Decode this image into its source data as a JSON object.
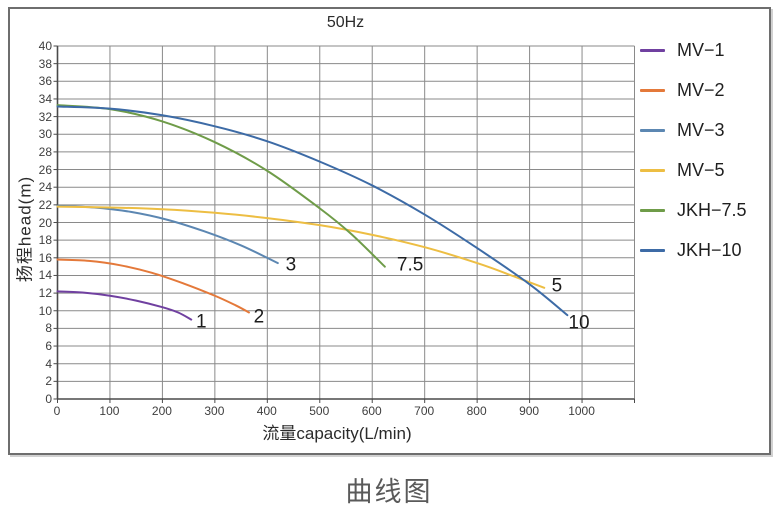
{
  "page": {
    "caption": "曲线图"
  },
  "chart_data": {
    "type": "line",
    "title": "50Hz",
    "xlabel": "流量capacity(L/min)",
    "ylabel": "扬程head(m)",
    "xlim": [
      0,
      1100
    ],
    "ylim": [
      0,
      40
    ],
    "x_tick_step": 100,
    "x_tick_label_max": 1000,
    "y_tick_step": 2,
    "grid": true,
    "legend_position": "right",
    "grid_color": "#8a8a8a",
    "axis_color": "#4a4a4a",
    "series": [
      {
        "name": "MV−1",
        "color": "#7040A0",
        "points": [
          [
            0,
            12.2
          ],
          [
            50,
            12.05
          ],
          [
            100,
            11.7
          ],
          [
            150,
            11.15
          ],
          [
            200,
            10.4
          ],
          [
            230,
            9.8
          ],
          [
            255,
            9.0
          ]
        ]
      },
      {
        "name": "MV−2",
        "color": "#E4793A",
        "points": [
          [
            0,
            15.8
          ],
          [
            60,
            15.65
          ],
          [
            120,
            15.15
          ],
          [
            180,
            14.3
          ],
          [
            240,
            13.1
          ],
          [
            300,
            11.7
          ],
          [
            340,
            10.6
          ],
          [
            365,
            9.8
          ]
        ]
      },
      {
        "name": "MV−3",
        "color": "#5C87B2",
        "points": [
          [
            0,
            21.9
          ],
          [
            70,
            21.7
          ],
          [
            140,
            21.2
          ],
          [
            210,
            20.3
          ],
          [
            280,
            19.0
          ],
          [
            350,
            17.4
          ],
          [
            420,
            15.4
          ]
        ]
      },
      {
        "name": "MV−5",
        "color": "#EDBE43",
        "points": [
          [
            0,
            21.8
          ],
          [
            100,
            21.7
          ],
          [
            200,
            21.5
          ],
          [
            300,
            21.1
          ],
          [
            400,
            20.5
          ],
          [
            500,
            19.7
          ],
          [
            600,
            18.6
          ],
          [
            700,
            17.2
          ],
          [
            800,
            15.4
          ],
          [
            870,
            13.9
          ],
          [
            928,
            12.6
          ]
        ]
      },
      {
        "name": "JKH−7.5",
        "color": "#6F9C49",
        "points": [
          [
            0,
            33.3
          ],
          [
            100,
            32.85
          ],
          [
            200,
            31.45
          ],
          [
            300,
            29.1
          ],
          [
            400,
            25.85
          ],
          [
            500,
            21.6
          ],
          [
            560,
            18.7
          ],
          [
            624,
            15.0
          ]
        ]
      },
      {
        "name": "JKH−10",
        "color": "#3D6BA6",
        "points": [
          [
            0,
            33.15
          ],
          [
            100,
            32.9
          ],
          [
            200,
            32.15
          ],
          [
            300,
            30.9
          ],
          [
            400,
            29.2
          ],
          [
            500,
            26.9
          ],
          [
            600,
            24.2
          ],
          [
            700,
            20.9
          ],
          [
            800,
            17.1
          ],
          [
            900,
            13.0
          ],
          [
            972,
            9.5
          ]
        ]
      }
    ],
    "annotations": [
      {
        "text": "1",
        "x": 264,
        "y": 8.7
      },
      {
        "text": "2",
        "x": 374,
        "y": 9.3
      },
      {
        "text": "3",
        "x": 435,
        "y": 15.2
      },
      {
        "text": "7.5",
        "x": 647,
        "y": 15.2
      },
      {
        "text": "5",
        "x": 942,
        "y": 12.8
      },
      {
        "text": "10",
        "x": 974,
        "y": 8.6
      }
    ]
  }
}
